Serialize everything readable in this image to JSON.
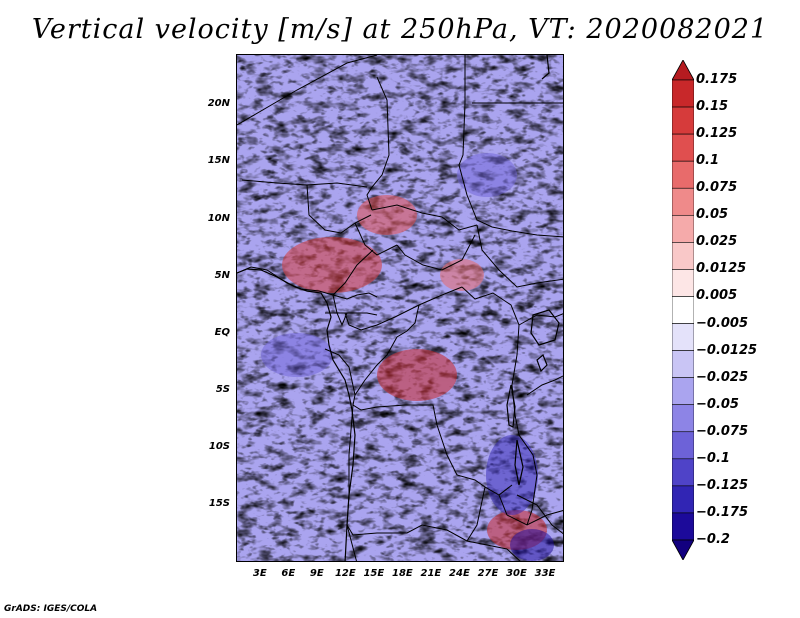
{
  "title": "Vertical velocity [m/s] at 250hPa, VT: 2020082021",
  "credit": "GrADS: IGES/COLA",
  "map": {
    "lat_labels": [
      "20N",
      "15N",
      "10N",
      "5N",
      "EQ",
      "5S",
      "10S",
      "15S"
    ],
    "lat_values": [
      20,
      15,
      10,
      5,
      0,
      -5,
      -10,
      -15
    ],
    "lat_range": [
      -20,
      24.5
    ],
    "lon_labels": [
      "3E",
      "6E",
      "9E",
      "12E",
      "15E",
      "18E",
      "21E",
      "24E",
      "27E",
      "30E",
      "33E"
    ],
    "lon_values": [
      3,
      6,
      9,
      12,
      15,
      18,
      21,
      24,
      27,
      30,
      33
    ],
    "lon_range": [
      0.5,
      35
    ]
  },
  "colorbar": {
    "labels": [
      "0.175",
      "0.15",
      "0.125",
      "0.1",
      "0.075",
      "0.05",
      "0.025",
      "0.0125",
      "0.005",
      "−0.005",
      "−0.0125",
      "−0.025",
      "−0.05",
      "−0.075",
      "−0.1",
      "−0.125",
      "−0.175",
      "−0.2"
    ],
    "colors": [
      "#b51b20",
      "#c8282a",
      "#d63b3b",
      "#e04f4f",
      "#e86b6b",
      "#ef8a8a",
      "#f5aaaa",
      "#f9c8c8",
      "#fde6e6",
      "#ffffff",
      "#e4e2fa",
      "#c9c5f5",
      "#aaa4ef",
      "#8d84e6",
      "#6d62d8",
      "#4f43c8",
      "#3125b4",
      "#1c0a9a",
      "#12007f"
    ]
  }
}
